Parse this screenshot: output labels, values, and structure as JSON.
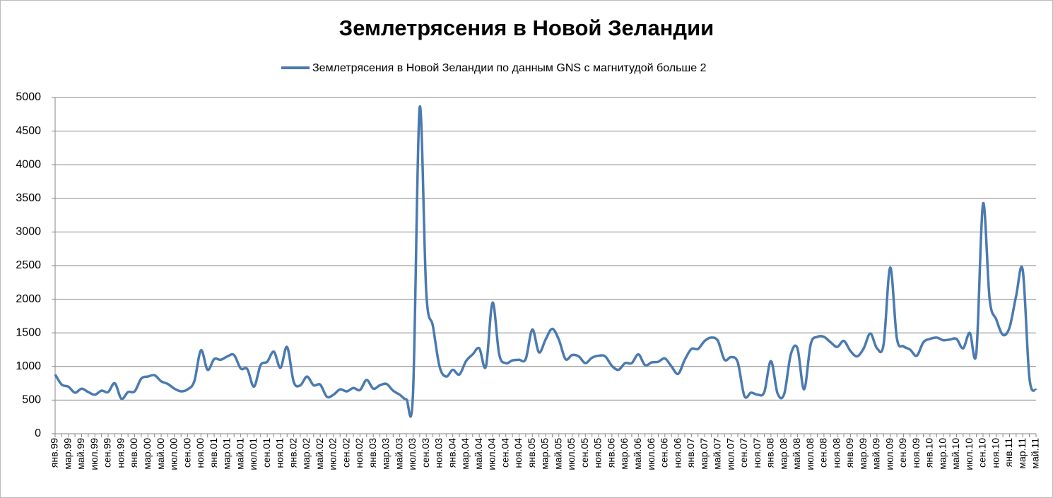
{
  "chart_data": {
    "type": "line",
    "title": "Землетрясения в Новой Зеландии",
    "categories": [
      "янв.99",
      null,
      "мар.99",
      null,
      "май.99",
      null,
      "июл.99",
      null,
      "сен.99",
      null,
      "ноя.99",
      null,
      "янв.00",
      null,
      "мар.00",
      null,
      "май.00",
      null,
      "июл.00",
      null,
      "сен.00",
      null,
      "ноя.00",
      null,
      "янв.01",
      null,
      "мар.01",
      null,
      "май.01",
      null,
      "июл.01",
      null,
      "сен.01",
      null,
      "ноя.01",
      null,
      "янв.02",
      null,
      "мар.02",
      null,
      "май.02",
      null,
      "июл.02",
      null,
      "сен.02",
      null,
      "ноя.02",
      null,
      "янв.03",
      null,
      "мар.03",
      null,
      "май.03",
      null,
      "июл.03",
      null,
      "сен.03",
      null,
      "ноя.03",
      null,
      "янв.04",
      null,
      "мар.04",
      null,
      "май.04",
      null,
      "июл.04",
      null,
      "сен.04",
      null,
      "ноя.04",
      null,
      "янв.05",
      null,
      "мар.05",
      null,
      "май.05",
      null,
      "июл.05",
      null,
      "сен.05",
      null,
      "ноя.05",
      null,
      "янв.06",
      null,
      "мар.06",
      null,
      "май.06",
      null,
      "июл.06",
      null,
      "сен.06",
      null,
      "ноя.06",
      null,
      "янв.07",
      null,
      "мар.07",
      null,
      "май.07",
      null,
      "июл.07",
      null,
      "сен.07",
      null,
      "ноя.07",
      null,
      "янв.08",
      null,
      "мар.08",
      null,
      "май.08",
      null,
      "июл.08",
      null,
      "сен.08",
      null,
      "ноя.08",
      null,
      "янв.09",
      null,
      "мар.09",
      null,
      "май.09",
      null,
      "июл.09",
      null,
      "сен.09",
      null,
      "ноя.09",
      null,
      "янв.10",
      null,
      "мар.10",
      null,
      "май.10",
      null,
      "июл.10",
      null,
      "сен.10",
      null,
      "ноя.10",
      null,
      "янв.11",
      null,
      "мар.11",
      null,
      "май.11"
    ],
    "series": [
      {
        "name": "Землетрясения в Новой Зеландии по данным GNS с магнитудой больше 2",
        "color": "#4a7ab0",
        "values": [
          880,
          730,
          700,
          610,
          670,
          620,
          580,
          640,
          620,
          750,
          520,
          620,
          630,
          820,
          850,
          870,
          780,
          740,
          670,
          630,
          660,
          780,
          1240,
          950,
          1110,
          1100,
          1150,
          1170,
          970,
          960,
          700,
          1020,
          1070,
          1220,
          980,
          1290,
          770,
          720,
          850,
          720,
          730,
          550,
          580,
          660,
          630,
          680,
          650,
          800,
          670,
          720,
          740,
          640,
          580,
          510,
          600,
          4850,
          2100,
          1600,
          1000,
          850,
          950,
          880,
          1080,
          1180,
          1270,
          1000,
          1950,
          1180,
          1050,
          1090,
          1100,
          1110,
          1550,
          1210,
          1400,
          1560,
          1400,
          1110,
          1170,
          1150,
          1050,
          1130,
          1160,
          1150,
          1010,
          950,
          1050,
          1050,
          1180,
          1020,
          1060,
          1070,
          1120,
          1000,
          890,
          1100,
          1260,
          1260,
          1380,
          1430,
          1380,
          1100,
          1140,
          1060,
          560,
          610,
          580,
          620,
          1080,
          600,
          590,
          1180,
          1270,
          660,
          1330,
          1440,
          1440,
          1360,
          1290,
          1380,
          1230,
          1150,
          1270,
          1490,
          1270,
          1330,
          2470,
          1420,
          1300,
          1250,
          1160,
          1360,
          1410,
          1430,
          1390,
          1400,
          1410,
          1270,
          1500,
          1210,
          3420,
          2000,
          1700,
          1470,
          1580,
          2050,
          2430,
          830,
          650
        ]
      }
    ],
    "ylim": [
      0,
      5000
    ],
    "yticks": [
      0,
      500,
      1000,
      1500,
      2000,
      2500,
      3000,
      3500,
      4000,
      4500,
      5000
    ],
    "grid": true,
    "legend": "top"
  }
}
